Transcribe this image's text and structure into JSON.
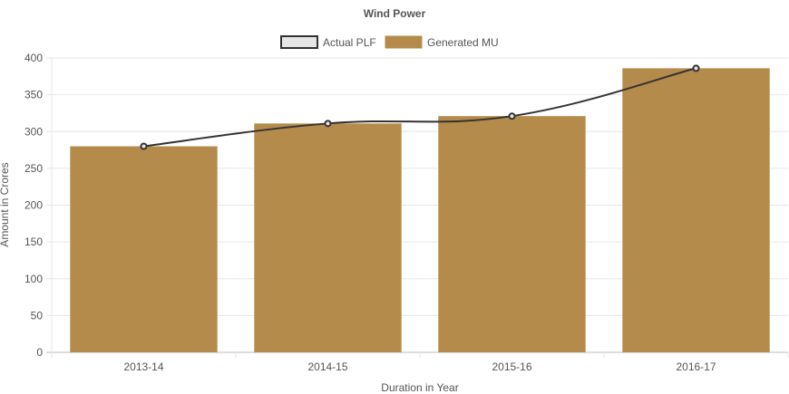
{
  "chart_data": {
    "type": "bar",
    "title": "Wind Power",
    "xlabel": "Duration in Year",
    "ylabel": "Amount in Crores",
    "categories": [
      "2013-14",
      "2014-15",
      "2015-16",
      "2016-17"
    ],
    "series": [
      {
        "name": "Actual PLF",
        "type": "line",
        "values": [
          280,
          311,
          321,
          386
        ],
        "color": "#333333",
        "fill": "#e6e6e6"
      },
      {
        "name": "Generated MU",
        "type": "bar",
        "values": [
          280,
          311,
          321,
          386
        ],
        "color": "#b58b4c"
      }
    ],
    "ylim": [
      0,
      400
    ],
    "yticks": [
      0,
      50,
      100,
      150,
      200,
      250,
      300,
      350,
      400
    ],
    "grid": true,
    "legend_position": "top"
  }
}
